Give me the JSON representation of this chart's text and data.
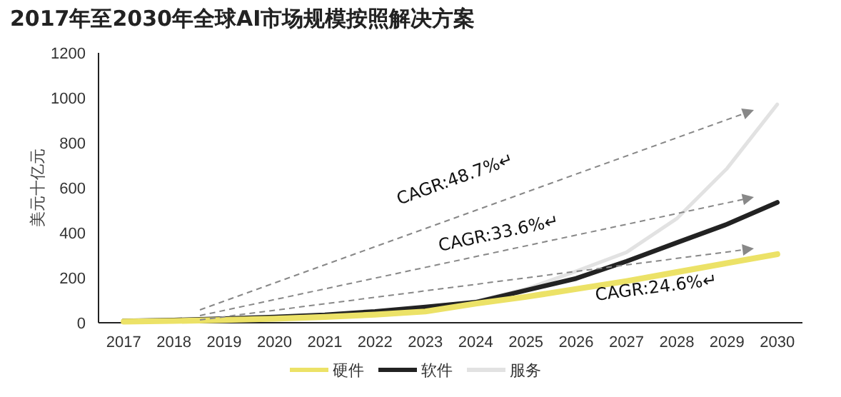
{
  "chart_data": {
    "type": "line",
    "title": "2017年至2030年全球AI市场规模按照解决方案",
    "ylabel": "美元十亿元",
    "x": [
      2017,
      2018,
      2019,
      2020,
      2021,
      2022,
      2023,
      2024,
      2025,
      2026,
      2027,
      2028,
      2029,
      2030
    ],
    "xlim": [
      2016.5,
      2030.5
    ],
    "xticks": [
      2017,
      2018,
      2019,
      2020,
      2021,
      2022,
      2023,
      2024,
      2025,
      2026,
      2027,
      2028,
      2029,
      2030
    ],
    "ylim": [
      0,
      1200
    ],
    "yticks": [
      0,
      200,
      400,
      600,
      800,
      1000,
      1200
    ],
    "series": [
      {
        "name": "硬件",
        "color": "#ece267",
        "values": [
          5,
          8,
          12,
          18,
          26,
          36,
          50,
          85,
          115,
          150,
          185,
          225,
          265,
          305
        ]
      },
      {
        "name": "软件",
        "color": "#222222",
        "values": [
          8,
          12,
          18,
          25,
          35,
          50,
          70,
          91,
          144,
          197,
          273,
          356,
          438,
          535
        ]
      },
      {
        "name": "服务",
        "color": "#e2e2e2",
        "values": [
          6,
          10,
          15,
          22,
          32,
          48,
          70,
          95,
          150,
          229,
          313,
          463,
          686,
          971
        ]
      }
    ],
    "annotations": [
      "CAGR:48.7%↵",
      "CAGR:33.6%↵",
      "CAGR:24.6%↵"
    ],
    "legend": "bottom",
    "grid": false,
    "marker": "none",
    "line_style": "solid"
  }
}
